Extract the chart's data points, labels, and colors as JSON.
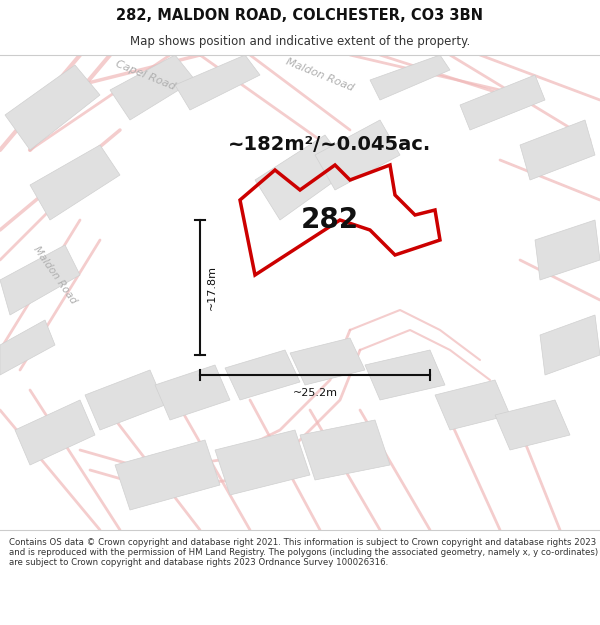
{
  "title": "282, MALDON ROAD, COLCHESTER, CO3 3BN",
  "subtitle": "Map shows position and indicative extent of the property.",
  "area_text": "~182m²/~0.045ac.",
  "label": "282",
  "dim_width": "~25.2m",
  "dim_height": "~17.8m",
  "footer": "Contains OS data © Crown copyright and database right 2021. This information is subject to Crown copyright and database rights 2023 and is reproduced with the permission of HM Land Registry. The polygons (including the associated geometry, namely x, y co-ordinates) are subject to Crown copyright and database rights 2023 Ordnance Survey 100026316.",
  "bg_color": "#f0f0f0",
  "plot_color": "#cc0000",
  "road_label_color": "#b0b0b0",
  "dim_color": "#111111",
  "building_color": "#e0e0e0",
  "building_edge": "#d0d0d0",
  "road_pink": "#f0b8b8",
  "white": "#ffffff"
}
